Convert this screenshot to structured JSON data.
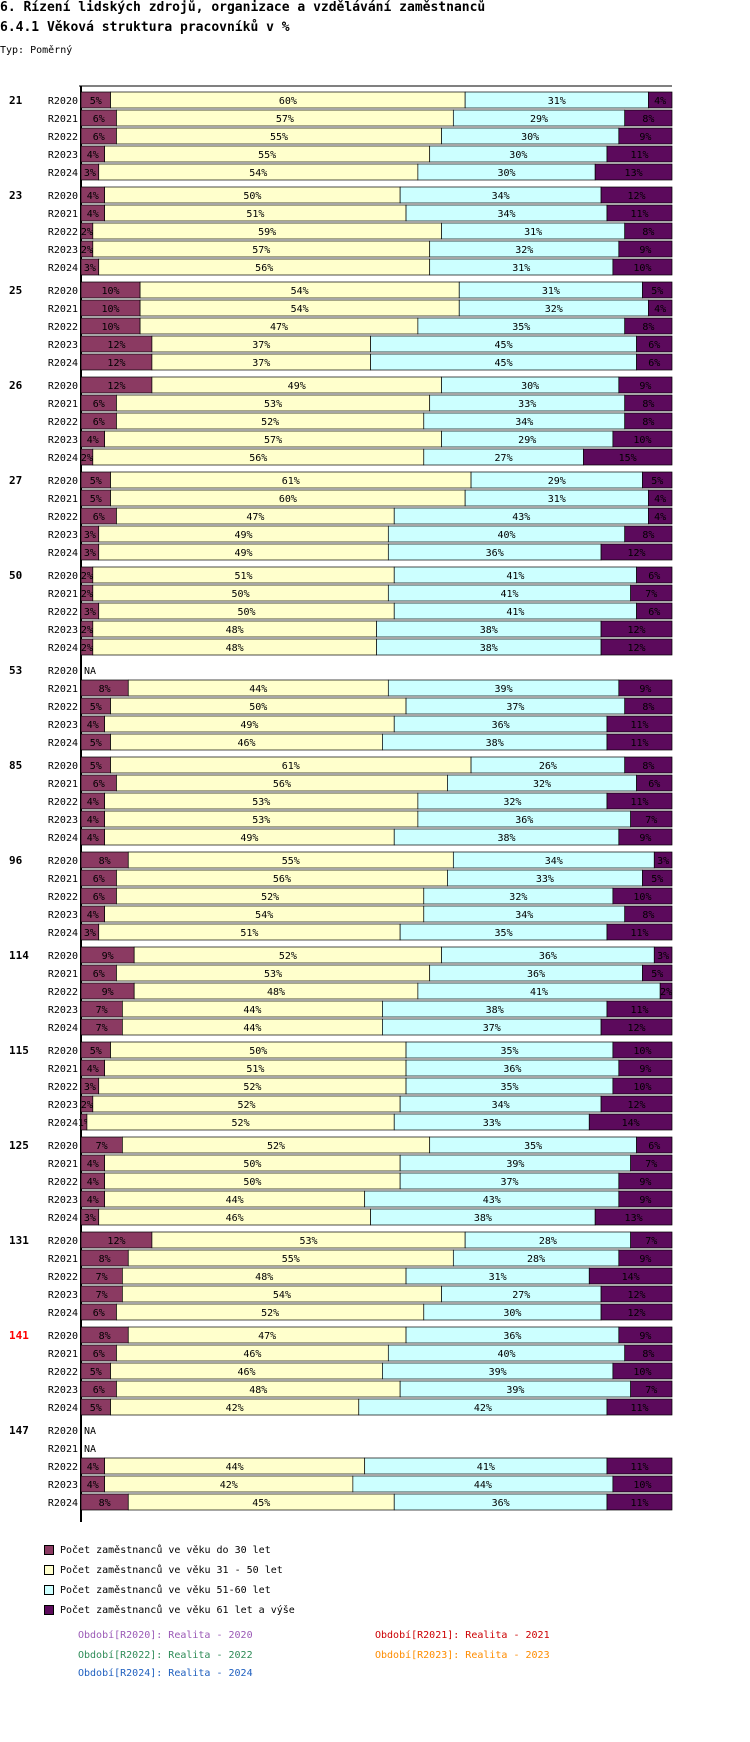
{
  "page": {
    "title_line1": "6. Řízení lidských zdrojů, organizace a vzdělávání zaměstnanců",
    "title_line2": "6.4.1 Věková struktura pracovníků v %",
    "subtitle": "Typ: Poměrný"
  },
  "colors": {
    "segments": [
      "#8b3a62",
      "#ffffcc",
      "#ccffff",
      "#5c0a5c"
    ],
    "highlight_group": "#ff0000",
    "periods": {
      "R2020": "#9b59b6",
      "R2021": "#cc0000",
      "R2022": "#2e8b57",
      "R2023": "#ff8c00",
      "R2024": "#1f5fbf"
    }
  },
  "chart_data": {
    "type": "bar",
    "orientation": "horizontal",
    "stacked": true,
    "value_suffix": "%",
    "na_label": "NA",
    "series_names": [
      "Počet zaměstnanců ve věku do 30 let",
      "Počet zaměstnanců ve věku 31 - 50 let",
      "Počet zaměstnanců ve věku 51-60 let",
      "Počet zaměstnanců ve věku 61 let a výše"
    ],
    "highlighted_group": "141",
    "groups": [
      {
        "label": "21",
        "rows": [
          {
            "period": "R2020",
            "values": [
              5,
              60,
              31,
              4
            ]
          },
          {
            "period": "R2021",
            "values": [
              6,
              57,
              29,
              8
            ]
          },
          {
            "period": "R2022",
            "values": [
              6,
              55,
              30,
              9
            ]
          },
          {
            "period": "R2023",
            "values": [
              4,
              55,
              30,
              11
            ]
          },
          {
            "period": "R2024",
            "values": [
              3,
              54,
              30,
              13
            ]
          }
        ]
      },
      {
        "label": "23",
        "rows": [
          {
            "period": "R2020",
            "values": [
              4,
              50,
              34,
              12
            ]
          },
          {
            "period": "R2021",
            "values": [
              4,
              51,
              34,
              11
            ]
          },
          {
            "period": "R2022",
            "values": [
              2,
              59,
              31,
              8
            ]
          },
          {
            "period": "R2023",
            "values": [
              2,
              57,
              32,
              9
            ]
          },
          {
            "period": "R2024",
            "values": [
              3,
              56,
              31,
              10
            ]
          }
        ]
      },
      {
        "label": "25",
        "rows": [
          {
            "period": "R2020",
            "values": [
              10,
              54,
              31,
              5
            ]
          },
          {
            "period": "R2021",
            "values": [
              10,
              54,
              32,
              4
            ]
          },
          {
            "period": "R2022",
            "values": [
              10,
              47,
              35,
              8
            ]
          },
          {
            "period": "R2023",
            "values": [
              12,
              37,
              45,
              6
            ]
          },
          {
            "period": "R2024",
            "values": [
              12,
              37,
              45,
              6
            ]
          }
        ]
      },
      {
        "label": "26",
        "rows": [
          {
            "period": "R2020",
            "values": [
              12,
              49,
              30,
              9
            ]
          },
          {
            "period": "R2021",
            "values": [
              6,
              53,
              33,
              8
            ]
          },
          {
            "period": "R2022",
            "values": [
              6,
              52,
              34,
              8
            ]
          },
          {
            "period": "R2023",
            "values": [
              4,
              57,
              29,
              10
            ]
          },
          {
            "period": "R2024",
            "values": [
              2,
              56,
              27,
              15
            ]
          }
        ]
      },
      {
        "label": "27",
        "rows": [
          {
            "period": "R2020",
            "values": [
              5,
              61,
              29,
              5
            ]
          },
          {
            "period": "R2021",
            "values": [
              5,
              60,
              31,
              4
            ]
          },
          {
            "period": "R2022",
            "values": [
              6,
              47,
              43,
              4
            ]
          },
          {
            "period": "R2023",
            "values": [
              3,
              49,
              40,
              8
            ]
          },
          {
            "period": "R2024",
            "values": [
              3,
              49,
              36,
              12
            ]
          }
        ]
      },
      {
        "label": "50",
        "rows": [
          {
            "period": "R2020",
            "values": [
              2,
              51,
              41,
              6
            ]
          },
          {
            "period": "R2021",
            "values": [
              2,
              50,
              41,
              7
            ]
          },
          {
            "period": "R2022",
            "values": [
              3,
              50,
              41,
              6
            ]
          },
          {
            "period": "R2023",
            "values": [
              2,
              48,
              38,
              12
            ]
          },
          {
            "period": "R2024",
            "values": [
              2,
              48,
              38,
              12
            ]
          }
        ]
      },
      {
        "label": "53",
        "rows": [
          {
            "period": "R2020",
            "values": null
          },
          {
            "period": "R2021",
            "values": [
              8,
              44,
              39,
              9
            ]
          },
          {
            "period": "R2022",
            "values": [
              5,
              50,
              37,
              8
            ]
          },
          {
            "period": "R2023",
            "values": [
              4,
              49,
              36,
              11
            ]
          },
          {
            "period": "R2024",
            "values": [
              5,
              46,
              38,
              11
            ]
          }
        ]
      },
      {
        "label": "85",
        "rows": [
          {
            "period": "R2020",
            "values": [
              5,
              61,
              26,
              8
            ]
          },
          {
            "period": "R2021",
            "values": [
              6,
              56,
              32,
              6
            ]
          },
          {
            "period": "R2022",
            "values": [
              4,
              53,
              32,
              11
            ]
          },
          {
            "period": "R2023",
            "values": [
              4,
              53,
              36,
              7
            ]
          },
          {
            "period": "R2024",
            "values": [
              4,
              49,
              38,
              9
            ]
          }
        ]
      },
      {
        "label": "96",
        "rows": [
          {
            "period": "R2020",
            "values": [
              8,
              55,
              34,
              3
            ]
          },
          {
            "period": "R2021",
            "values": [
              6,
              56,
              33,
              5
            ]
          },
          {
            "period": "R2022",
            "values": [
              6,
              52,
              32,
              10
            ]
          },
          {
            "period": "R2023",
            "values": [
              4,
              54,
              34,
              8
            ]
          },
          {
            "period": "R2024",
            "values": [
              3,
              51,
              35,
              11
            ]
          }
        ]
      },
      {
        "label": "114",
        "rows": [
          {
            "period": "R2020",
            "values": [
              9,
              52,
              36,
              3
            ]
          },
          {
            "period": "R2021",
            "values": [
              6,
              53,
              36,
              5
            ]
          },
          {
            "period": "R2022",
            "values": [
              9,
              48,
              41,
              2
            ]
          },
          {
            "period": "R2023",
            "values": [
              7,
              44,
              38,
              11
            ]
          },
          {
            "period": "R2024",
            "values": [
              7,
              44,
              37,
              12
            ]
          }
        ]
      },
      {
        "label": "115",
        "rows": [
          {
            "period": "R2020",
            "values": [
              5,
              50,
              35,
              10
            ]
          },
          {
            "period": "R2021",
            "values": [
              4,
              51,
              36,
              9
            ]
          },
          {
            "period": "R2022",
            "values": [
              3,
              52,
              35,
              10
            ]
          },
          {
            "period": "R2023",
            "values": [
              2,
              52,
              34,
              12
            ]
          },
          {
            "period": "R2024",
            "values": [
              1,
              52,
              33,
              14
            ]
          }
        ]
      },
      {
        "label": "125",
        "rows": [
          {
            "period": "R2020",
            "values": [
              7,
              52,
              35,
              6
            ]
          },
          {
            "period": "R2021",
            "values": [
              4,
              50,
              39,
              7
            ]
          },
          {
            "period": "R2022",
            "values": [
              4,
              50,
              37,
              9
            ]
          },
          {
            "period": "R2023",
            "values": [
              4,
              44,
              43,
              9
            ]
          },
          {
            "period": "R2024",
            "values": [
              3,
              46,
              38,
              13
            ]
          }
        ]
      },
      {
        "label": "131",
        "rows": [
          {
            "period": "R2020",
            "values": [
              12,
              53,
              28,
              7
            ]
          },
          {
            "period": "R2021",
            "values": [
              8,
              55,
              28,
              9
            ]
          },
          {
            "period": "R2022",
            "values": [
              7,
              48,
              31,
              14
            ]
          },
          {
            "period": "R2023",
            "values": [
              7,
              54,
              27,
              12
            ]
          },
          {
            "period": "R2024",
            "values": [
              6,
              52,
              30,
              12
            ]
          }
        ]
      },
      {
        "label": "141",
        "rows": [
          {
            "period": "R2020",
            "values": [
              8,
              47,
              36,
              9
            ]
          },
          {
            "period": "R2021",
            "values": [
              6,
              46,
              40,
              8
            ]
          },
          {
            "period": "R2022",
            "values": [
              5,
              46,
              39,
              10
            ]
          },
          {
            "period": "R2023",
            "values": [
              6,
              48,
              39,
              7
            ]
          },
          {
            "period": "R2024",
            "values": [
              5,
              42,
              42,
              11
            ]
          }
        ]
      },
      {
        "label": "147",
        "rows": [
          {
            "period": "R2020",
            "values": null
          },
          {
            "period": "R2021",
            "values": null
          },
          {
            "period": "R2022",
            "values": [
              4,
              44,
              41,
              11
            ]
          },
          {
            "period": "R2023",
            "values": [
              4,
              42,
              44,
              10
            ]
          },
          {
            "period": "R2024",
            "values": [
              8,
              45,
              36,
              11
            ]
          }
        ]
      }
    ]
  },
  "legend": {
    "items": [
      "Počet zaměstnanců ve věku do 30 let",
      "Počet zaměstnanců ve věku 31 - 50 let",
      "Počet zaměstnanců ve věku 51-60 let",
      "Počet zaměstnanců ve věku 61 let a výše"
    ],
    "periods": [
      {
        "key": "R2020",
        "text": "Období[R2020]: Realita - 2020"
      },
      {
        "key": "R2021",
        "text": "Období[R2021]: Realita - 2021"
      },
      {
        "key": "R2022",
        "text": "Období[R2022]: Realita - 2022"
      },
      {
        "key": "R2023",
        "text": "Období[R2023]: Realita - 2023"
      },
      {
        "key": "R2024",
        "text": "Období[R2024]: Realita - 2024"
      }
    ]
  }
}
